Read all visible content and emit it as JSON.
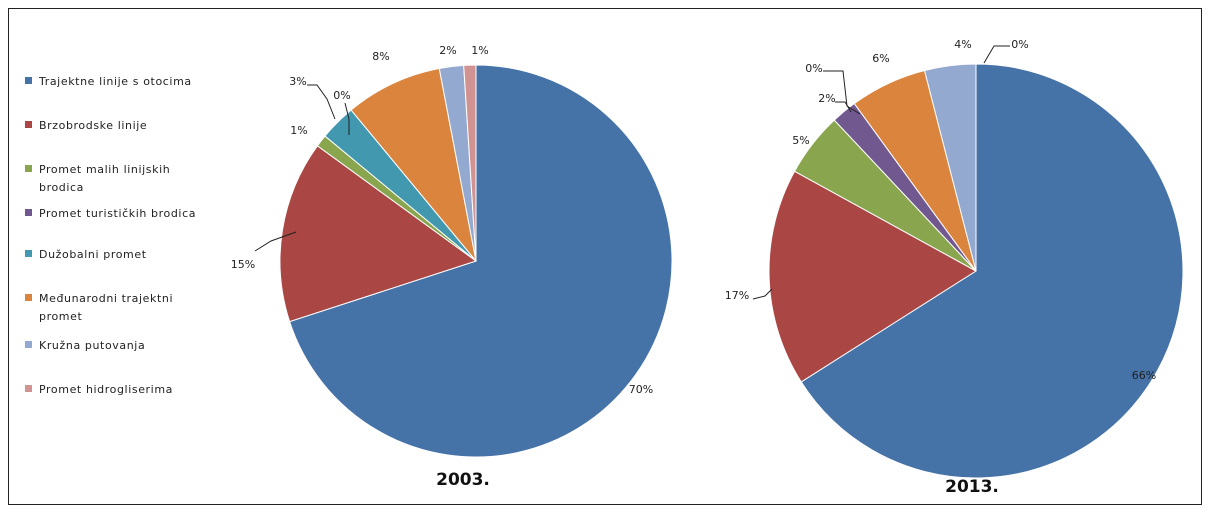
{
  "colors": [
    "#4572A7",
    "#AA4643",
    "#89A54E",
    "#71588F",
    "#4198AF",
    "#DB843D",
    "#93A9CF",
    "#D19392"
  ],
  "chart_data": [
    {
      "type": "pie",
      "title": "2003.",
      "categories": [
        "Trajektne linije s otocima",
        "Brzobrodske linije",
        "Promet malih linijskih brodica",
        "Promet turističkih brodica",
        "Dužobalni promet",
        "Međunarodni trajektni promet",
        "Kružna putovanja",
        "Promet hidrogliserima"
      ],
      "values": [
        70,
        15,
        1,
        0,
        3,
        8,
        2,
        1
      ],
      "data_labels": [
        "70%",
        "15%",
        "1%",
        "0%",
        "3%",
        "8%",
        "2%",
        "1%"
      ],
      "legend": "left"
    },
    {
      "type": "pie",
      "title": "2013.",
      "categories": [
        "Trajektne linije s otocima",
        "Brzobrodske linije",
        "Promet malih linijskih brodica",
        "Promet turističkih brodica",
        "Dužobalni promet",
        "Međunarodni trajektni promet",
        "Kružna putovanja",
        "Promet hidrogliserima"
      ],
      "values": [
        66,
        17,
        5,
        2,
        0,
        6,
        4,
        0
      ],
      "data_labels": [
        "66%",
        "17%",
        "5%",
        "2%",
        "0%",
        "6%",
        "4%",
        "0%"
      ],
      "legend": "left"
    }
  ],
  "legend": {
    "items": [
      "Trajektne linije s otocima",
      "Brzobrodske linije",
      "Promet malih linijskih brodica",
      "Promet turističkih brodica",
      "Dužobalni promet",
      "Međunarodni trajektni promet",
      "Kružna putovanja",
      "Promet hidrogliserima"
    ]
  }
}
